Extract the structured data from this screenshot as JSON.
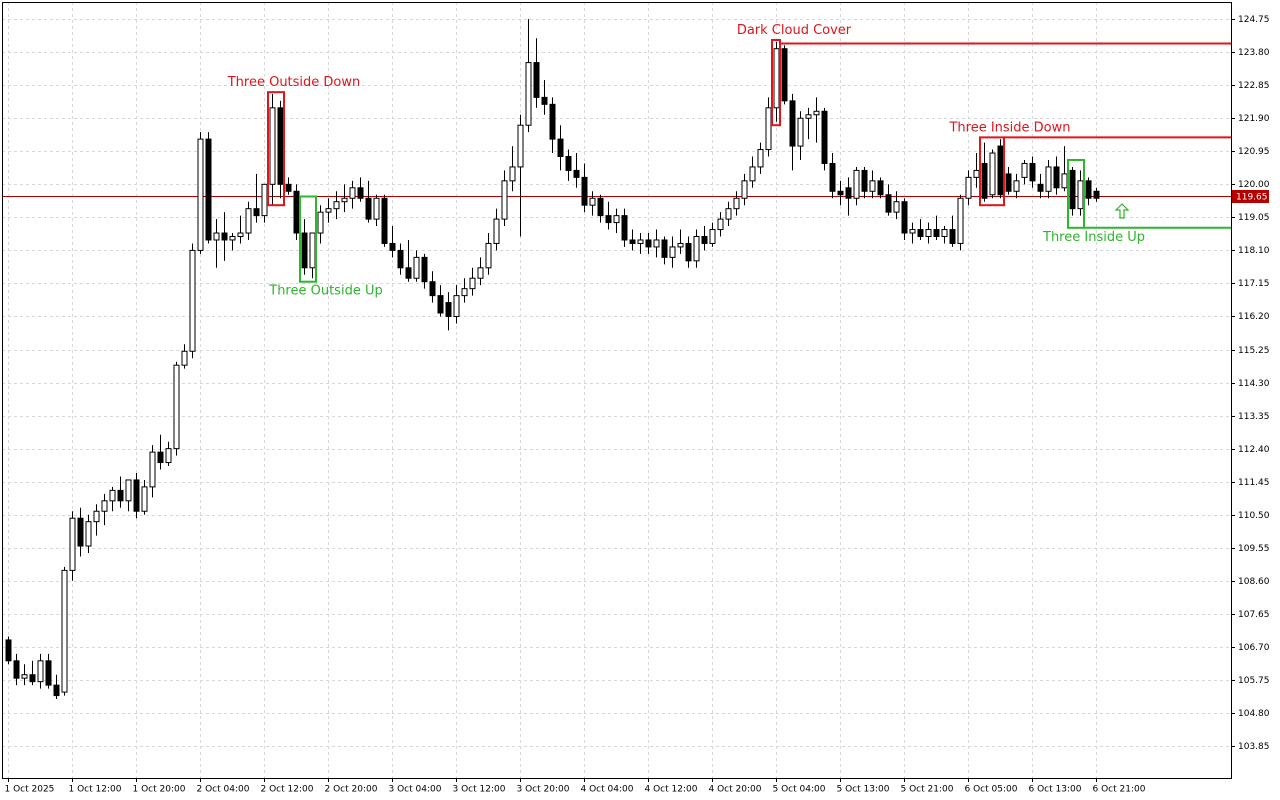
{
  "chart_data": {
    "type": "candlestick",
    "ohlc": [
      [
        106.9,
        107.0,
        106.2,
        106.3
      ],
      [
        106.3,
        106.5,
        105.6,
        105.8
      ],
      [
        105.8,
        106.2,
        105.6,
        105.9
      ],
      [
        105.9,
        106.3,
        105.6,
        105.7
      ],
      [
        105.7,
        106.5,
        105.5,
        106.3
      ],
      [
        106.3,
        106.5,
        105.5,
        105.6
      ],
      [
        105.6,
        105.9,
        105.2,
        105.3
      ],
      [
        105.4,
        109.0,
        105.3,
        108.9
      ],
      [
        108.9,
        110.6,
        108.6,
        110.4
      ],
      [
        110.4,
        110.7,
        109.3,
        109.6
      ],
      [
        109.6,
        110.5,
        109.4,
        110.3
      ],
      [
        110.3,
        110.8,
        109.9,
        110.6
      ],
      [
        110.6,
        111.1,
        110.2,
        110.9
      ],
      [
        110.9,
        111.3,
        110.6,
        111.2
      ],
      [
        111.2,
        111.6,
        110.7,
        110.9
      ],
      [
        110.9,
        111.5,
        110.6,
        111.5
      ],
      [
        111.5,
        111.7,
        110.4,
        110.6
      ],
      [
        110.6,
        111.5,
        110.5,
        111.3
      ],
      [
        111.3,
        112.5,
        111.0,
        112.3
      ],
      [
        112.3,
        112.8,
        111.8,
        112.0
      ],
      [
        112.0,
        112.6,
        111.9,
        112.4
      ],
      [
        112.4,
        114.9,
        112.2,
        114.8
      ],
      [
        114.8,
        115.4,
        114.7,
        115.2
      ],
      [
        115.2,
        118.3,
        115.0,
        118.1
      ],
      [
        118.1,
        121.5,
        118.0,
        121.3
      ],
      [
        121.3,
        121.5,
        118.3,
        118.4
      ],
      [
        118.4,
        119.0,
        117.6,
        118.6
      ],
      [
        118.6,
        119.2,
        117.8,
        118.4
      ],
      [
        118.4,
        118.6,
        118.1,
        118.5
      ],
      [
        118.5,
        119.1,
        118.3,
        118.6
      ],
      [
        118.6,
        119.5,
        118.4,
        119.3
      ],
      [
        119.3,
        120.3,
        118.9,
        119.1
      ],
      [
        119.1,
        120.0,
        118.9,
        120.0
      ],
      [
        120.0,
        122.6,
        119.4,
        122.2
      ],
      [
        122.2,
        122.4,
        119.6,
        120.0
      ],
      [
        120.0,
        120.2,
        119.7,
        119.8
      ],
      [
        119.8,
        120.0,
        118.4,
        118.6
      ],
      [
        118.6,
        119.0,
        117.4,
        117.6
      ],
      [
        117.6,
        118.6,
        117.3,
        118.6
      ],
      [
        118.6,
        119.4,
        118.3,
        119.2
      ],
      [
        119.2,
        119.6,
        118.9,
        119.3
      ],
      [
        119.3,
        119.8,
        119.0,
        119.5
      ],
      [
        119.5,
        120.0,
        119.2,
        119.6
      ],
      [
        119.6,
        120.1,
        119.3,
        119.9
      ],
      [
        119.9,
        120.2,
        119.5,
        119.6
      ],
      [
        119.6,
        120.1,
        118.9,
        119.0
      ],
      [
        119.0,
        119.7,
        118.8,
        119.6
      ],
      [
        119.6,
        119.7,
        118.2,
        118.3
      ],
      [
        118.3,
        118.8,
        117.9,
        118.1
      ],
      [
        118.1,
        118.3,
        117.4,
        117.6
      ],
      [
        117.6,
        118.4,
        117.2,
        117.3
      ],
      [
        117.3,
        118.1,
        117.2,
        117.9
      ],
      [
        117.9,
        118.0,
        117.0,
        117.2
      ],
      [
        117.2,
        117.5,
        116.6,
        116.8
      ],
      [
        116.8,
        117.1,
        116.2,
        116.3
      ],
      [
        116.6,
        116.9,
        115.8,
        116.2
      ],
      [
        116.2,
        117.1,
        116.0,
        116.8
      ],
      [
        116.8,
        117.3,
        116.6,
        117.0
      ],
      [
        117.0,
        117.6,
        116.8,
        117.3
      ],
      [
        117.3,
        117.9,
        117.1,
        117.6
      ],
      [
        117.6,
        118.6,
        117.4,
        118.3
      ],
      [
        118.3,
        119.3,
        118.1,
        119.0
      ],
      [
        119.0,
        120.4,
        118.8,
        120.1
      ],
      [
        120.1,
        121.1,
        119.8,
        120.5
      ],
      [
        120.5,
        122.0,
        118.5,
        121.7
      ],
      [
        121.7,
        124.75,
        121.5,
        123.5
      ],
      [
        123.5,
        124.2,
        122.2,
        122.5
      ],
      [
        122.5,
        123.0,
        122.0,
        122.3
      ],
      [
        122.3,
        122.5,
        120.9,
        121.3
      ],
      [
        121.3,
        121.7,
        120.4,
        120.8
      ],
      [
        120.8,
        121.0,
        120.1,
        120.4
      ],
      [
        120.4,
        120.9,
        119.9,
        120.2
      ],
      [
        120.2,
        120.6,
        119.2,
        119.4
      ],
      [
        119.4,
        119.8,
        119.1,
        119.6
      ],
      [
        119.6,
        119.7,
        118.9,
        119.1
      ],
      [
        119.1,
        119.5,
        118.7,
        118.9
      ],
      [
        118.9,
        119.3,
        118.6,
        119.1
      ],
      [
        119.1,
        119.3,
        118.2,
        118.4
      ],
      [
        118.4,
        118.7,
        118.1,
        118.3
      ],
      [
        118.3,
        118.6,
        118.0,
        118.4
      ],
      [
        118.4,
        118.6,
        118.0,
        118.2
      ],
      [
        118.2,
        118.7,
        117.9,
        118.4
      ],
      [
        118.4,
        118.5,
        117.7,
        117.9
      ],
      [
        117.9,
        118.5,
        117.6,
        118.2
      ],
      [
        118.2,
        118.7,
        118.0,
        118.3
      ],
      [
        118.3,
        118.5,
        117.6,
        117.8
      ],
      [
        117.8,
        118.7,
        117.6,
        118.5
      ],
      [
        118.5,
        118.8,
        118.1,
        118.3
      ],
      [
        118.3,
        118.9,
        118.2,
        118.7
      ],
      [
        118.7,
        119.2,
        118.5,
        119.0
      ],
      [
        119.0,
        119.5,
        118.8,
        119.3
      ],
      [
        119.3,
        119.8,
        119.1,
        119.6
      ],
      [
        119.6,
        120.3,
        119.4,
        120.1
      ],
      [
        120.1,
        120.8,
        119.9,
        120.5
      ],
      [
        120.5,
        121.2,
        120.3,
        121.0
      ],
      [
        121.0,
        122.5,
        120.8,
        122.2
      ],
      [
        122.2,
        124.1,
        121.8,
        123.9
      ],
      [
        123.9,
        124.0,
        122.3,
        122.4
      ],
      [
        122.4,
        122.6,
        120.4,
        121.1
      ],
      [
        121.1,
        122.1,
        120.7,
        121.9
      ],
      [
        121.9,
        122.2,
        121.3,
        122.0
      ],
      [
        122.0,
        122.5,
        121.2,
        122.1
      ],
      [
        122.1,
        122.2,
        120.4,
        120.6
      ],
      [
        120.6,
        120.9,
        119.6,
        119.8
      ],
      [
        119.8,
        120.1,
        119.4,
        119.7
      ],
      [
        119.9,
        120.2,
        119.1,
        119.6
      ],
      [
        119.6,
        120.5,
        119.4,
        120.4
      ],
      [
        120.4,
        120.5,
        119.6,
        119.8
      ],
      [
        119.8,
        120.4,
        119.6,
        120.1
      ],
      [
        120.1,
        120.2,
        119.6,
        119.7
      ],
      [
        119.7,
        120.0,
        119.1,
        119.2
      ],
      [
        119.2,
        119.8,
        119.0,
        119.5
      ],
      [
        119.5,
        119.6,
        118.4,
        118.6
      ],
      [
        118.6,
        118.9,
        118.3,
        118.7
      ],
      [
        118.7,
        119.0,
        118.4,
        118.5
      ],
      [
        118.5,
        118.9,
        118.3,
        118.7
      ],
      [
        118.7,
        119.1,
        118.4,
        118.5
      ],
      [
        118.5,
        118.8,
        118.3,
        118.7
      ],
      [
        118.7,
        119.1,
        118.2,
        118.3
      ],
      [
        118.3,
        119.7,
        118.1,
        119.6
      ],
      [
        119.6,
        120.4,
        119.4,
        120.2
      ],
      [
        120.2,
        120.9,
        119.9,
        120.4
      ],
      [
        120.6,
        121.2,
        119.5,
        119.6
      ],
      [
        119.7,
        121.0,
        119.6,
        120.9
      ],
      [
        121.1,
        121.3,
        119.6,
        119.7
      ],
      [
        120.3,
        120.5,
        119.7,
        119.8
      ],
      [
        119.8,
        120.3,
        119.6,
        120.1
      ],
      [
        120.2,
        120.7,
        120.0,
        120.6
      ],
      [
        120.6,
        120.8,
        119.9,
        120.1
      ],
      [
        120.0,
        120.3,
        119.6,
        119.8
      ],
      [
        119.8,
        120.7,
        119.6,
        120.5
      ],
      [
        120.5,
        120.8,
        119.7,
        119.9
      ],
      [
        119.9,
        121.1,
        119.8,
        120.3
      ],
      [
        120.4,
        120.5,
        119.1,
        119.3
      ],
      [
        119.3,
        120.4,
        119.1,
        120.1
      ],
      [
        120.1,
        120.2,
        119.4,
        119.6
      ],
      [
        119.8,
        119.9,
        119.5,
        119.6
      ]
    ],
    "up_color": "#ffffff",
    "down_color": "#000000",
    "xlim": [
      -1,
      153
    ],
    "xticks": [
      {
        "value": 0,
        "label": "1 Oct 2025"
      },
      {
        "value": 8,
        "label": "1 Oct 12:00"
      },
      {
        "value": 16,
        "label": "1 Oct 20:00"
      },
      {
        "value": 24,
        "label": "2 Oct 04:00"
      },
      {
        "value": 32,
        "label": "2 Oct 12:00"
      },
      {
        "value": 40,
        "label": "2 Oct 20:00"
      },
      {
        "value": 48,
        "label": "3 Oct 04:00"
      },
      {
        "value": 56,
        "label": "3 Oct 12:00"
      },
      {
        "value": 64,
        "label": "3 Oct 20:00"
      },
      {
        "value": 72,
        "label": "4 Oct 04:00"
      },
      {
        "value": 80,
        "label": "4 Oct 12:00"
      },
      {
        "value": 88,
        "label": "4 Oct 20:00"
      },
      {
        "value": 96,
        "label": "5 Oct 04:00"
      },
      {
        "value": 104,
        "label": "5 Oct 13:00"
      },
      {
        "value": 112,
        "label": "5 Oct 21:00"
      },
      {
        "value": 120,
        "label": "6 Oct 05:00"
      },
      {
        "value": 128,
        "label": "6 Oct 13:00"
      },
      {
        "value": 136,
        "label": "6 Oct 21:00"
      }
    ],
    "ylim": [
      102.93,
      125.3
    ],
    "yticks": [
      124.75,
      {
        "value": 123.8,
        "label": "123.80"
      },
      122.85,
      {
        "value": 121.9,
        "label": "121.90"
      },
      120.95,
      {
        "value": 120,
        "label": "120.00"
      },
      119.05,
      {
        "value": 118.1,
        "label": "118.10"
      },
      117.15,
      {
        "value": 116.2,
        "label": "116.20"
      },
      115.25,
      {
        "value": 114.3,
        "label": "114.30"
      },
      113.35,
      {
        "value": 112.4,
        "label": "112.40"
      },
      111.45,
      {
        "value": 110.5,
        "label": "110.50"
      },
      109.55,
      {
        "value": 108.6,
        "label": "108.60"
      },
      107.65,
      {
        "value": 106.7,
        "label": "106.70"
      },
      105.75,
      {
        "value": 104.8,
        "label": "104.80"
      },
      103.85
    ],
    "grid": true,
    "last_price": 119.65,
    "last_price_color": "#b40000",
    "patterns": [
      {
        "label": "Three Outside Down",
        "color": "#e0141a",
        "from": 33,
        "to": 34,
        "high": 122.65,
        "low": 119.4,
        "side": "above"
      },
      {
        "label": "Three Outside Up",
        "color": "#2db52d",
        "from": 37,
        "to": 38,
        "high": 119.65,
        "low": 117.2,
        "side": "below"
      },
      {
        "label": "Dark Cloud Cover",
        "color": "#e0141a",
        "from": 96,
        "to": 96,
        "high": 124.15,
        "low": 121.7,
        "level": 124.05,
        "side": "above"
      },
      {
        "label": "Three Inside Down",
        "color": "#e0141a",
        "from": 122,
        "to": 124,
        "high": 121.35,
        "low": 119.4,
        "level": 121.35,
        "side": "above"
      },
      {
        "label": "Three Inside Up",
        "color": "#2db52d",
        "from": 133,
        "to": 134,
        "high": 120.7,
        "low": 118.75,
        "level": 118.75,
        "side": "below"
      }
    ]
  }
}
